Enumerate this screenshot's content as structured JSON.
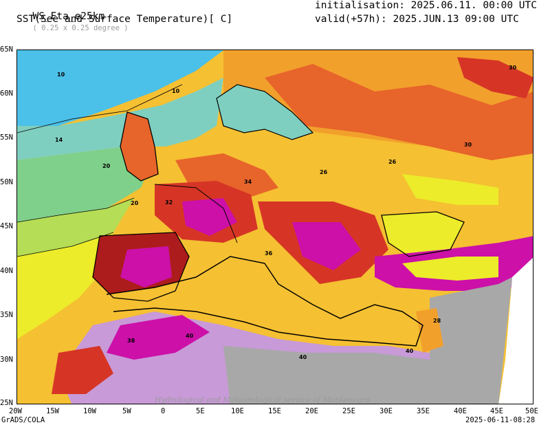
{
  "header": {
    "model": "WS_Eta_e25km",
    "resolution": "( 0.25 x 0.25 degree )",
    "variable": "SST(See and Surface Temperature)[ C]",
    "initialisation": "initialisation: 2025.06.11. 00:00 UTC",
    "valid": "valid(+57h): 2025.JUN.13 09:00 UTC"
  },
  "axes": {
    "lat_labels": [
      "65N",
      "60N",
      "55N",
      "50N",
      "45N",
      "40N",
      "35N",
      "30N",
      "25N"
    ],
    "lon_labels": [
      "20W",
      "15W",
      "10W",
      "5W",
      "0",
      "5E",
      "10E",
      "15E",
      "20E",
      "25E",
      "30E",
      "35E",
      "40E",
      "45E",
      "50E"
    ]
  },
  "footer": {
    "left": "GrADS/COLA",
    "right": "2025-06-11-08:28"
  },
  "watermark": "Hydrological and Meteorological service of Montenegro",
  "colors": {
    "t10": "#4bc0e8",
    "t14": "#7fcfc0",
    "t18": "#7fd08a",
    "t20": "#b5dd55",
    "t22": "#ecec2a",
    "t26": "#f5c032",
    "t28": "#f2a02c",
    "t30": "#e7642a",
    "t32": "#d63526",
    "t34": "#ad1c1c",
    "t36": "#cc10a8",
    "t38": "#d870d8",
    "t40": "#c89ad8",
    "nodata": "#a8a8a8"
  },
  "contour_labels": [
    "10",
    "14",
    "20",
    "26",
    "28",
    "30",
    "32",
    "34",
    "36",
    "38",
    "40"
  ]
}
